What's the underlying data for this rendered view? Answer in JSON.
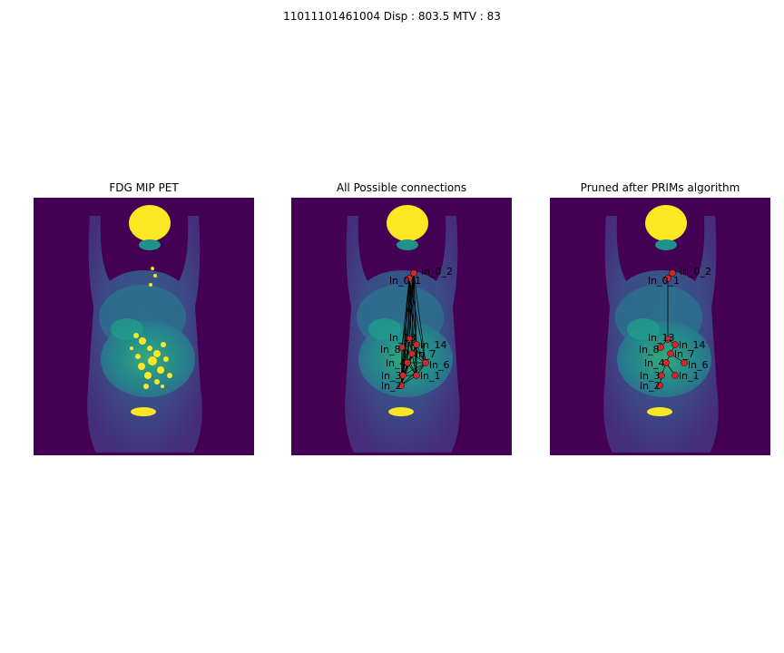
{
  "figure": {
    "suptitle": "11011101461004   Disp : 803.5  MTV : 83"
  },
  "panels": [
    {
      "title": "FDG MIP PET"
    },
    {
      "title": "All Possible connections"
    },
    {
      "title": "Pruned after PRIMs algorithm"
    }
  ],
  "colors": {
    "background": "#440154",
    "body_low": "#3b528b",
    "body_mid": "#21918c",
    "uptake_mid": "#5ec962",
    "uptake_high": "#fde725",
    "node": "#d62728",
    "edge": "#000000"
  },
  "nodes": [
    {
      "id": "ln_0_2",
      "label": "ln_0_2"
    },
    {
      "id": "ln_0_1",
      "label": "ln_0_1"
    },
    {
      "id": "ln_13",
      "label": "ln_13"
    },
    {
      "id": "ln_14",
      "label": "ln_14"
    },
    {
      "id": "ln_8",
      "label": "ln_8"
    },
    {
      "id": "ln_7",
      "label": "ln_7"
    },
    {
      "id": "ln_4",
      "label": "ln_4"
    },
    {
      "id": "ln_6",
      "label": "ln_6"
    },
    {
      "id": "ln_3",
      "label": "ln_3"
    },
    {
      "id": "ln_1",
      "label": "ln_1"
    },
    {
      "id": "ln_2",
      "label": "ln_2"
    }
  ]
}
